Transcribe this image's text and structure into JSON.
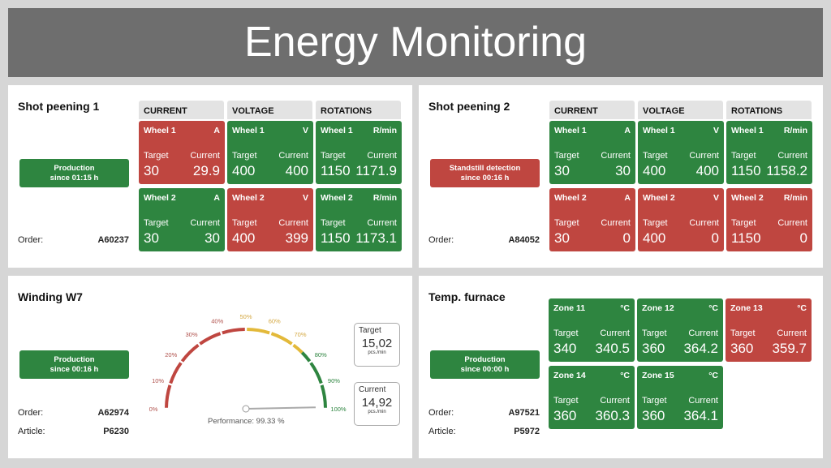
{
  "title": "Energy Monitoring",
  "colors": {
    "red": "#bf4640",
    "green": "#2e8540",
    "yellow": "#e3b93a"
  },
  "columns": [
    "CURRENT",
    "VOLTAGE",
    "ROTATIONS"
  ],
  "labels": {
    "target": "Target",
    "current": "Current",
    "order": "Order:",
    "article": "Article:"
  },
  "shot1": {
    "title": "Shot peening 1",
    "status": {
      "line1": "Production",
      "line2": "since 01:15 h",
      "color": "green"
    },
    "order": "A60237",
    "tiles": [
      {
        "name": "Wheel 1",
        "unit": "A",
        "target": "30",
        "current": "29.9",
        "status": "red"
      },
      {
        "name": "Wheel 1",
        "unit": "V",
        "target": "400",
        "current": "400",
        "status": "green"
      },
      {
        "name": "Wheel 1",
        "unit": "R/min",
        "target": "1150",
        "current": "1171.9",
        "status": "green"
      },
      {
        "name": "Wheel 2",
        "unit": "A",
        "target": "30",
        "current": "30",
        "status": "green"
      },
      {
        "name": "Wheel 2",
        "unit": "V",
        "target": "400",
        "current": "399",
        "status": "red"
      },
      {
        "name": "Wheel 2",
        "unit": "R/min",
        "target": "1150",
        "current": "1173.1",
        "status": "green"
      }
    ]
  },
  "shot2": {
    "title": "Shot peening 2",
    "status": {
      "line1": "Standstill detection",
      "line2": "since 00:16 h",
      "color": "red"
    },
    "order": "A84052",
    "tiles": [
      {
        "name": "Wheel 1",
        "unit": "A",
        "target": "30",
        "current": "30",
        "status": "green"
      },
      {
        "name": "Wheel 1",
        "unit": "V",
        "target": "400",
        "current": "400",
        "status": "green"
      },
      {
        "name": "Wheel 1",
        "unit": "R/min",
        "target": "1150",
        "current": "1158.2",
        "status": "green"
      },
      {
        "name": "Wheel 2",
        "unit": "A",
        "target": "30",
        "current": "0",
        "status": "red"
      },
      {
        "name": "Wheel 2",
        "unit": "V",
        "target": "400",
        "current": "0",
        "status": "red"
      },
      {
        "name": "Wheel 2",
        "unit": "R/min",
        "target": "1150",
        "current": "0",
        "status": "red"
      }
    ]
  },
  "winding": {
    "title": "Winding W7",
    "status": {
      "line1": "Production",
      "line2": "since 00:16 h",
      "color": "green"
    },
    "order": "A62974",
    "article": "P6230",
    "gauge": {
      "ticks": [
        "0%",
        "10%",
        "20%",
        "30%",
        "40%",
        "50%",
        "60%",
        "70%",
        "80%",
        "90%",
        "100%"
      ],
      "value": 99.33,
      "label": "Performance: 99.33 %"
    },
    "target": {
      "label": "Target",
      "value": "15,02",
      "unit": "pcs./min"
    },
    "current": {
      "label": "Current",
      "value": "14,92",
      "unit": "pcs./min"
    }
  },
  "furnace": {
    "title": "Temp. furnace",
    "status": {
      "line1": "Production",
      "line2": "since 00:00 h",
      "color": "green"
    },
    "order": "A97521",
    "article": "P5972",
    "tiles": [
      {
        "name": "Zone 11",
        "unit": "°C",
        "target": "340",
        "current": "340.5",
        "status": "green"
      },
      {
        "name": "Zone 12",
        "unit": "°C",
        "target": "360",
        "current": "364.2",
        "status": "green"
      },
      {
        "name": "Zone 13",
        "unit": "°C",
        "target": "360",
        "current": "359.7",
        "status": "red"
      },
      {
        "name": "Zone 14",
        "unit": "°C",
        "target": "360",
        "current": "360.3",
        "status": "green"
      },
      {
        "name": "Zone 15",
        "unit": "°C",
        "target": "360",
        "current": "364.1",
        "status": "green"
      }
    ]
  }
}
